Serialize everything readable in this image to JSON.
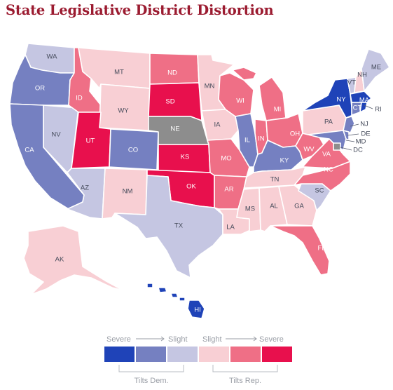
{
  "title": "State Legislative District Distortion",
  "colors": {
    "dem_severe": "#1f43b8",
    "dem_moderate": "#7580c1",
    "dem_slight": "#c5c6e2",
    "rep_slight": "#f8cfd4",
    "rep_moderate": "#ef6f86",
    "rep_severe": "#e8104d",
    "no_data": "#8d8d8d"
  },
  "states": {
    "WA": {
      "label": "WA",
      "category": "dem_slight"
    },
    "OR": {
      "label": "OR",
      "category": "dem_moderate"
    },
    "CA": {
      "label": "CA",
      "category": "dem_moderate"
    },
    "NV": {
      "label": "NV",
      "category": "dem_slight"
    },
    "ID": {
      "label": "ID",
      "category": "rep_moderate"
    },
    "MT": {
      "label": "MT",
      "category": "rep_slight"
    },
    "WY": {
      "label": "WY",
      "category": "rep_slight"
    },
    "UT": {
      "label": "UT",
      "category": "rep_severe"
    },
    "AZ": {
      "label": "AZ",
      "category": "dem_slight"
    },
    "CO": {
      "label": "CO",
      "category": "dem_moderate"
    },
    "NM": {
      "label": "NM",
      "category": "rep_slight"
    },
    "ND": {
      "label": "ND",
      "category": "rep_moderate"
    },
    "SD": {
      "label": "SD",
      "category": "rep_severe"
    },
    "NE": {
      "label": "NE",
      "category": "no_data"
    },
    "KS": {
      "label": "KS",
      "category": "rep_severe"
    },
    "OK": {
      "label": "OK",
      "category": "rep_severe"
    },
    "TX": {
      "label": "TX",
      "category": "dem_slight"
    },
    "MN": {
      "label": "MN",
      "category": "rep_slight"
    },
    "IA": {
      "label": "IA",
      "category": "rep_slight"
    },
    "MO": {
      "label": "MO",
      "category": "rep_moderate"
    },
    "AR": {
      "label": "AR",
      "category": "rep_moderate"
    },
    "LA": {
      "label": "LA",
      "category": "rep_slight"
    },
    "WI": {
      "label": "WI",
      "category": "rep_moderate"
    },
    "IL": {
      "label": "IL",
      "category": "dem_moderate"
    },
    "MI": {
      "label": "MI",
      "category": "rep_moderate"
    },
    "IN": {
      "label": "IN",
      "category": "rep_moderate"
    },
    "OH": {
      "label": "OH",
      "category": "rep_moderate"
    },
    "KY": {
      "label": "KY",
      "category": "dem_moderate"
    },
    "TN": {
      "label": "TN",
      "category": "rep_slight"
    },
    "MS": {
      "label": "MS",
      "category": "rep_slight"
    },
    "AL": {
      "label": "AL",
      "category": "rep_slight"
    },
    "GA": {
      "label": "GA",
      "category": "rep_slight"
    },
    "FL": {
      "label": "FL",
      "category": "rep_moderate"
    },
    "SC": {
      "label": "SC",
      "category": "dem_slight"
    },
    "NC": {
      "label": "NC",
      "category": "rep_moderate"
    },
    "VA": {
      "label": "VA",
      "category": "rep_moderate"
    },
    "WV": {
      "label": "WV",
      "category": "rep_moderate"
    },
    "PA": {
      "label": "PA",
      "category": "rep_slight"
    },
    "NY": {
      "label": "NY",
      "category": "dem_severe"
    },
    "VT": {
      "label": "VT",
      "category": "dem_slight"
    },
    "NH": {
      "label": "NH",
      "category": "rep_slight"
    },
    "ME": {
      "label": "ME",
      "category": "dem_slight"
    },
    "MA": {
      "label": "MA",
      "category": "dem_severe"
    },
    "RI": {
      "label": "RI",
      "category": "dem_severe"
    },
    "CT": {
      "label": "CT",
      "category": "dem_moderate"
    },
    "NJ": {
      "label": "NJ",
      "category": "dem_moderate"
    },
    "DE": {
      "label": "DE",
      "category": "dem_moderate"
    },
    "MD": {
      "label": "MD",
      "category": "dem_moderate"
    },
    "DC": {
      "label": "DC",
      "category": "no_data"
    },
    "AK": {
      "label": "AK",
      "category": "rep_slight"
    },
    "HI": {
      "label": "HI",
      "category": "dem_severe"
    }
  },
  "legend": {
    "severe_left": "Severe",
    "slight_left": "Slight",
    "slight_right": "Slight",
    "severe_right": "Severe",
    "tilts_dem": "Tilts Dem.",
    "tilts_rep": "Tilts Rep.",
    "swatch_order": [
      "dem_severe",
      "dem_moderate",
      "dem_slight",
      "rep_slight",
      "rep_moderate",
      "rep_severe"
    ]
  }
}
